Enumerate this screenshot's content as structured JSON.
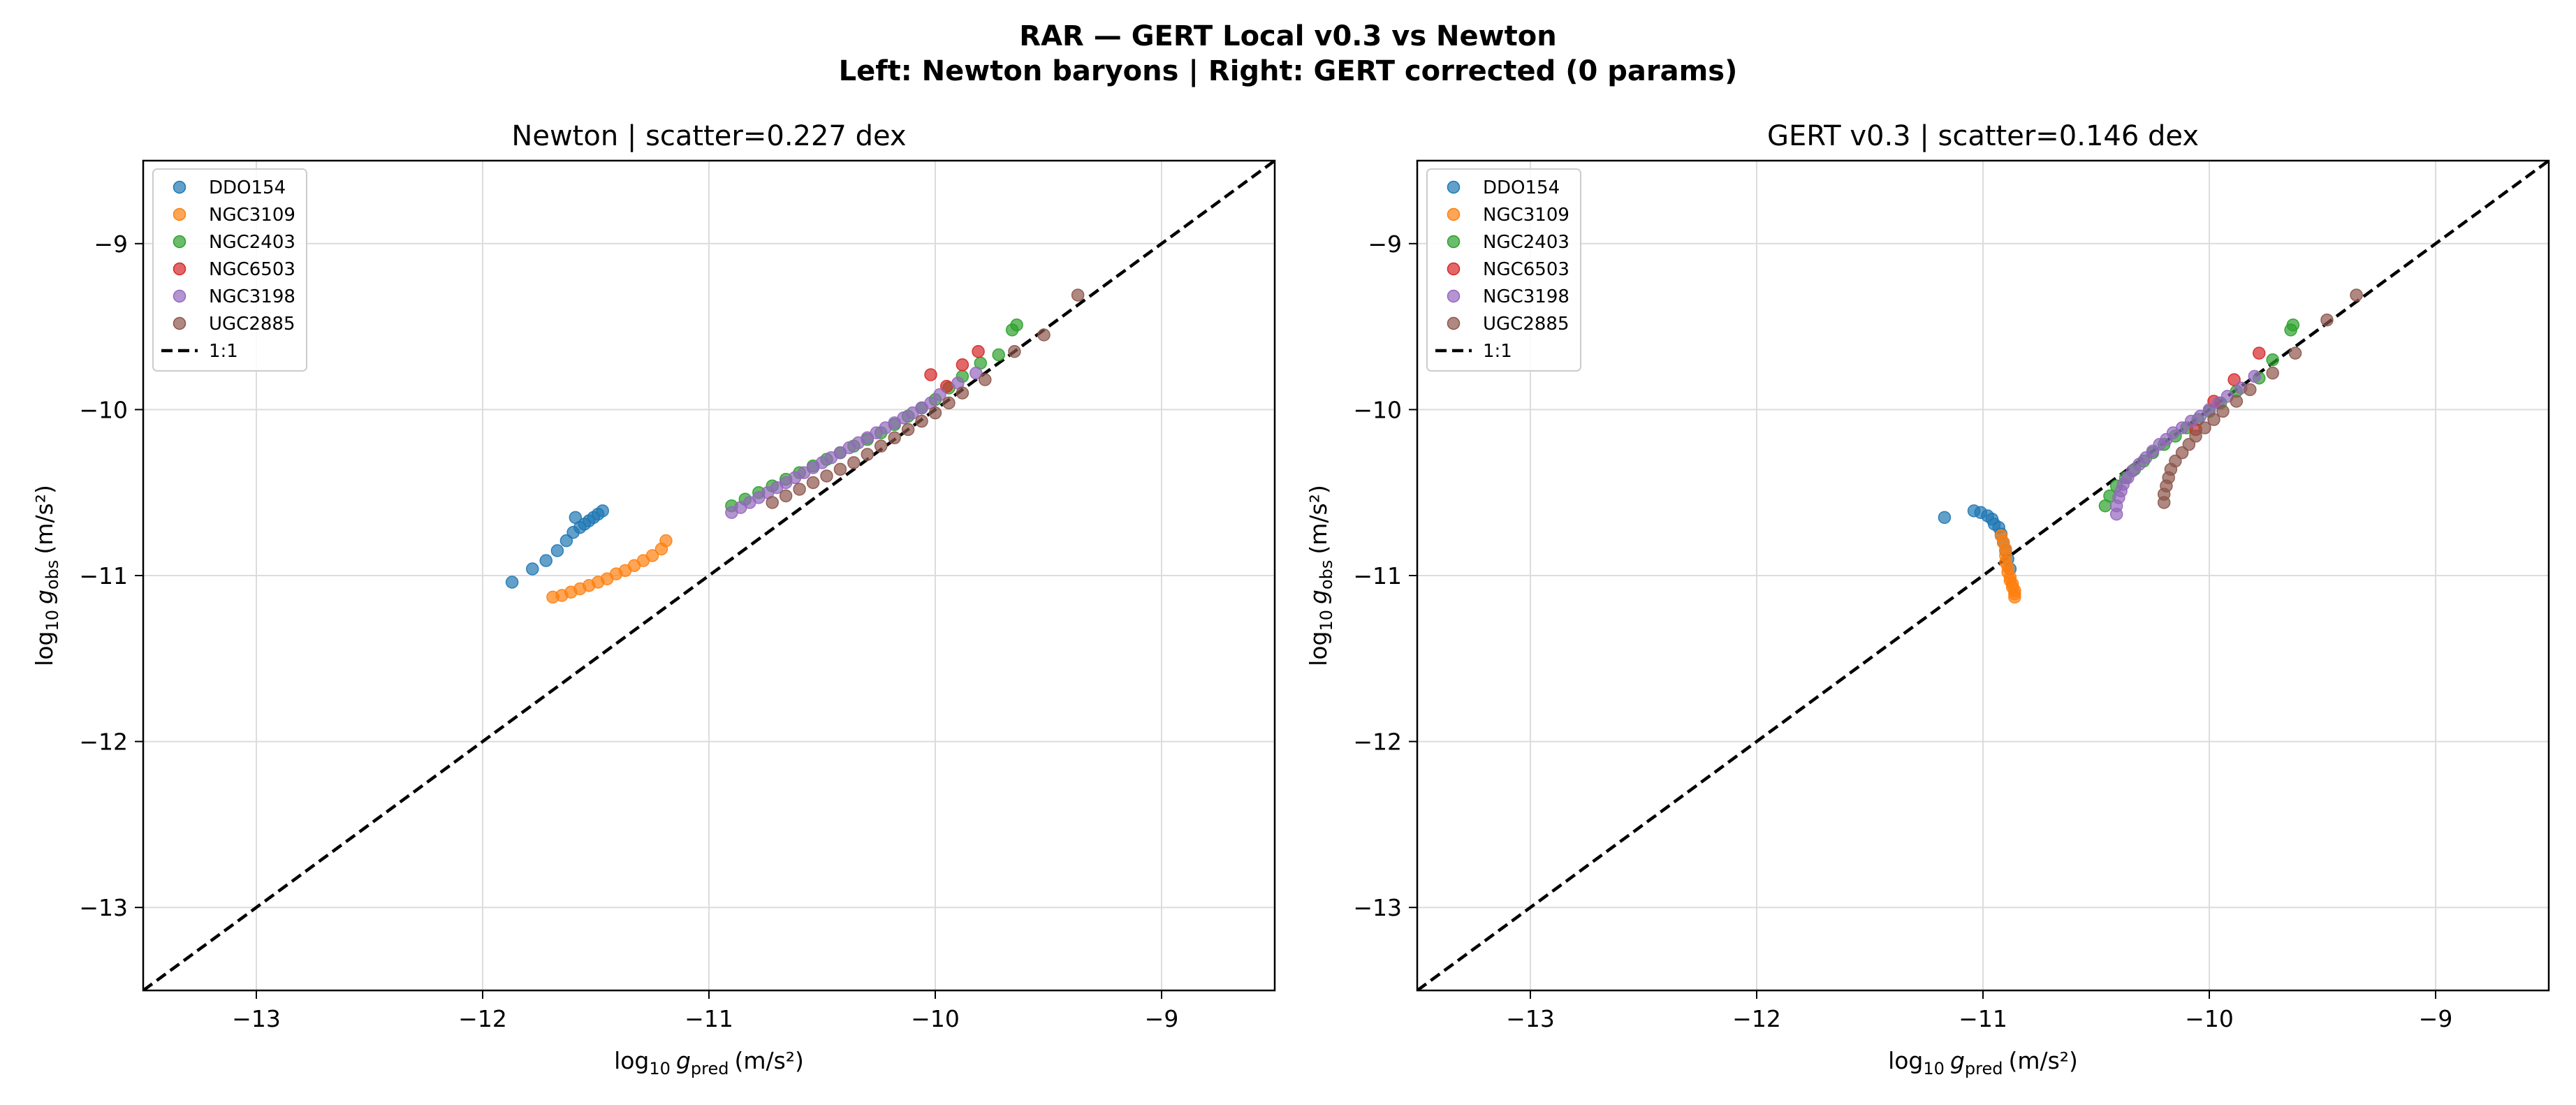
{
  "figure": {
    "suptitle_line1": "RAR — GERT Local v0.3 vs Newton",
    "suptitle_line2": "Left: Newton baryons | Right: GERT corrected (0 params)"
  },
  "chart_data": [
    {
      "type": "scatter",
      "title": "Newton  |  scatter=0.227 dex",
      "xlabel": "log10 g_pred (m/s²)",
      "ylabel": "log10 g_obs (m/s²)",
      "xlim": [
        -13.5,
        -8.5
      ],
      "ylim": [
        -13.5,
        -8.5
      ],
      "xticks": [
        -13,
        -12,
        -11,
        -10,
        -9
      ],
      "yticks": [
        -13,
        -12,
        -11,
        -10,
        -9
      ],
      "xtick_labels": [
        "−13",
        "−12",
        "−11",
        "−10",
        "−9"
      ],
      "ytick_labels": [
        "−13",
        "−12",
        "−11",
        "−10",
        "−9"
      ],
      "grid": true,
      "legend_position": "top-left",
      "reference_line": {
        "name": "1:1",
        "style": "dashed",
        "color": "#000000"
      },
      "series": [
        {
          "name": "DDO154",
          "color": "#1f77b4",
          "x": [
            -11.87,
            -11.78,
            -11.72,
            -11.67,
            -11.63,
            -11.6,
            -11.57,
            -11.55,
            -11.53,
            -11.51,
            -11.49,
            -11.47,
            -11.59
          ],
          "y": [
            -11.04,
            -10.96,
            -10.91,
            -10.85,
            -10.79,
            -10.74,
            -10.71,
            -10.69,
            -10.67,
            -10.65,
            -10.63,
            -10.61,
            -10.65
          ]
        },
        {
          "name": "NGC3109",
          "color": "#ff7f0e",
          "x": [
            -11.69,
            -11.65,
            -11.61,
            -11.57,
            -11.53,
            -11.49,
            -11.45,
            -11.41,
            -11.37,
            -11.33,
            -11.29,
            -11.25,
            -11.21,
            -11.19
          ],
          "y": [
            -11.13,
            -11.12,
            -11.1,
            -11.08,
            -11.06,
            -11.04,
            -11.02,
            -10.99,
            -10.97,
            -10.94,
            -10.91,
            -10.88,
            -10.84,
            -10.79
          ]
        },
        {
          "name": "NGC2403",
          "color": "#2ca02c",
          "x": [
            -10.9,
            -10.84,
            -10.78,
            -10.72,
            -10.66,
            -10.6,
            -10.54,
            -10.48,
            -10.42,
            -10.36,
            -10.3,
            -10.24,
            -10.18,
            -10.12,
            -10.06,
            -10.0,
            -9.94,
            -9.88,
            -9.8,
            -9.72,
            -9.66,
            -9.64
          ],
          "y": [
            -10.58,
            -10.54,
            -10.5,
            -10.46,
            -10.42,
            -10.38,
            -10.34,
            -10.3,
            -10.26,
            -10.22,
            -10.18,
            -10.14,
            -10.09,
            -10.04,
            -9.99,
            -9.94,
            -9.87,
            -9.8,
            -9.72,
            -9.67,
            -9.52,
            -9.49
          ]
        },
        {
          "name": "NGC6503",
          "color": "#d62728",
          "x": [
            -10.02,
            -9.95,
            -9.88,
            -9.81
          ],
          "y": [
            -9.79,
            -9.86,
            -9.73,
            -9.65
          ]
        },
        {
          "name": "NGC3198",
          "color": "#9467bd",
          "x": [
            -10.9,
            -10.86,
            -10.82,
            -10.78,
            -10.74,
            -10.7,
            -10.66,
            -10.62,
            -10.58,
            -10.54,
            -10.5,
            -10.46,
            -10.42,
            -10.38,
            -10.34,
            -10.3,
            -10.26,
            -10.22,
            -10.18,
            -10.14,
            -10.1,
            -10.06,
            -10.02,
            -9.98,
            -9.9,
            -9.82
          ],
          "y": [
            -10.62,
            -10.59,
            -10.56,
            -10.53,
            -10.5,
            -10.47,
            -10.44,
            -10.41,
            -10.38,
            -10.35,
            -10.32,
            -10.29,
            -10.26,
            -10.23,
            -10.2,
            -10.17,
            -10.14,
            -10.11,
            -10.08,
            -10.05,
            -10.02,
            -9.99,
            -9.96,
            -9.91,
            -9.84,
            -9.78
          ]
        },
        {
          "name": "UGC2885",
          "color": "#8c564b",
          "x": [
            -10.72,
            -10.66,
            -10.6,
            -10.54,
            -10.48,
            -10.42,
            -10.36,
            -10.3,
            -10.24,
            -10.18,
            -10.12,
            -10.06,
            -10.0,
            -9.94,
            -9.88,
            -9.78,
            -9.65,
            -9.52,
            -9.37
          ],
          "y": [
            -10.56,
            -10.52,
            -10.48,
            -10.44,
            -10.4,
            -10.36,
            -10.32,
            -10.27,
            -10.22,
            -10.17,
            -10.12,
            -10.07,
            -10.02,
            -9.96,
            -9.9,
            -9.82,
            -9.65,
            -9.55,
            -9.31
          ]
        }
      ]
    },
    {
      "type": "scatter",
      "title": "GERT v0.3  |  scatter=0.146 dex",
      "xlabel": "log10 g_pred (m/s²)",
      "ylabel": "log10 g_obs (m/s²)",
      "xlim": [
        -13.5,
        -8.5
      ],
      "ylim": [
        -13.5,
        -8.5
      ],
      "xticks": [
        -13,
        -12,
        -11,
        -10,
        -9
      ],
      "yticks": [
        -13,
        -12,
        -11,
        -10,
        -9
      ],
      "xtick_labels": [
        "−13",
        "−12",
        "−11",
        "−10",
        "−9"
      ],
      "ytick_labels": [
        "−13",
        "−12",
        "−11",
        "−10",
        "−9"
      ],
      "grid": true,
      "legend_position": "top-left",
      "reference_line": {
        "name": "1:1",
        "style": "dashed",
        "color": "#000000"
      },
      "series": [
        {
          "name": "DDO154",
          "color": "#1f77b4",
          "x": [
            -11.17,
            -11.04,
            -11.01,
            -10.98,
            -10.96,
            -10.95,
            -10.93,
            -10.92,
            -10.91,
            -10.9,
            -10.89,
            -10.88
          ],
          "y": [
            -10.65,
            -10.61,
            -10.62,
            -10.64,
            -10.66,
            -10.69,
            -10.71,
            -10.75,
            -10.8,
            -10.85,
            -10.9,
            -10.96
          ]
        },
        {
          "name": "NGC3109",
          "color": "#ff7f0e",
          "x": [
            -10.92,
            -10.91,
            -10.9,
            -10.9,
            -10.9,
            -10.89,
            -10.89,
            -10.88,
            -10.88,
            -10.87,
            -10.87,
            -10.86,
            -10.86,
            -10.86
          ],
          "y": [
            -10.76,
            -10.8,
            -10.84,
            -10.88,
            -10.92,
            -10.95,
            -10.98,
            -11.01,
            -11.03,
            -11.05,
            -11.07,
            -11.09,
            -11.11,
            -11.13
          ]
        },
        {
          "name": "NGC2403",
          "color": "#2ca02c",
          "x": [
            -10.46,
            -10.44,
            -10.41,
            -10.37,
            -10.33,
            -10.29,
            -10.25,
            -10.2,
            -10.15,
            -10.1,
            -10.05,
            -10.0,
            -9.95,
            -9.88,
            -9.78,
            -9.72,
            -9.64,
            -9.63
          ],
          "y": [
            -10.58,
            -10.52,
            -10.46,
            -10.41,
            -10.36,
            -10.31,
            -10.26,
            -10.21,
            -10.16,
            -10.11,
            -10.06,
            -10.01,
            -9.96,
            -9.89,
            -9.81,
            -9.7,
            -9.52,
            -9.49
          ]
        },
        {
          "name": "NGC6503",
          "color": "#d62728",
          "x": [
            -10.06,
            -9.98,
            -9.89,
            -9.78
          ],
          "y": [
            -10.12,
            -9.95,
            -9.82,
            -9.66
          ]
        },
        {
          "name": "NGC3198",
          "color": "#9467bd",
          "x": [
            -10.41,
            -10.41,
            -10.4,
            -10.39,
            -10.38,
            -10.36,
            -10.34,
            -10.31,
            -10.28,
            -10.25,
            -10.22,
            -10.19,
            -10.16,
            -10.12,
            -10.08,
            -10.04,
            -10.0,
            -9.96,
            -9.92,
            -9.86,
            -9.8
          ],
          "y": [
            -10.63,
            -10.58,
            -10.53,
            -10.49,
            -10.45,
            -10.41,
            -10.37,
            -10.33,
            -10.29,
            -10.25,
            -10.21,
            -10.18,
            -10.14,
            -10.11,
            -10.07,
            -10.04,
            -10.0,
            -9.96,
            -9.92,
            -9.87,
            -9.8
          ]
        },
        {
          "name": "UGC2885",
          "color": "#8c564b",
          "x": [
            -10.2,
            -10.2,
            -10.19,
            -10.18,
            -10.17,
            -10.15,
            -10.12,
            -10.09,
            -10.06,
            -10.02,
            -9.98,
            -9.94,
            -9.88,
            -9.82,
            -9.72,
            -9.62,
            -9.48,
            -9.35
          ],
          "y": [
            -10.56,
            -10.51,
            -10.46,
            -10.41,
            -10.36,
            -10.31,
            -10.26,
            -10.21,
            -10.16,
            -10.11,
            -10.06,
            -10.01,
            -9.95,
            -9.88,
            -9.78,
            -9.66,
            -9.46,
            -9.31
          ]
        }
      ]
    }
  ]
}
